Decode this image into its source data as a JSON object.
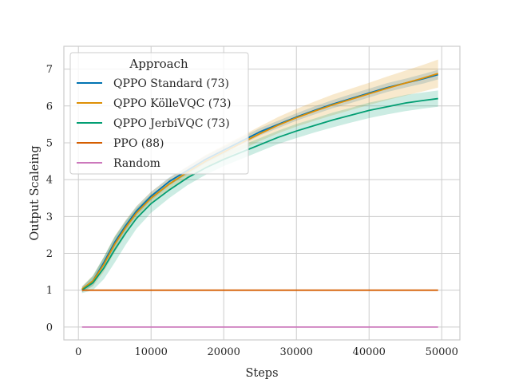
{
  "chart_data": {
    "type": "line",
    "title": "",
    "xlabel": "Steps",
    "ylabel": "Output Scaleing",
    "xlim": [
      -2000,
      52500
    ],
    "ylim": [
      -0.35,
      7.62
    ],
    "xticks": [
      0,
      10000,
      20000,
      30000,
      40000,
      50000
    ],
    "xtick_labels": [
      "0",
      "10000",
      "20000",
      "30000",
      "40000",
      "50000"
    ],
    "yticks": [
      0,
      1,
      2,
      3,
      4,
      5,
      6,
      7
    ],
    "ytick_labels": [
      "0",
      "1",
      "2",
      "3",
      "4",
      "5",
      "6",
      "7"
    ],
    "grid": true,
    "legend": {
      "title": "Approach",
      "placement": "top-left"
    },
    "x": [
      500,
      2000,
      3500,
      5000,
      6500,
      8000,
      10000,
      12500,
      15000,
      17500,
      20000,
      22500,
      25000,
      27500,
      30000,
      32500,
      35000,
      37500,
      40000,
      42500,
      45000,
      47500,
      49500
    ],
    "series": [
      {
        "name": "QPPO Standard (73)",
        "color": "#0173b2",
        "values": [
          1.02,
          1.25,
          1.75,
          2.3,
          2.75,
          3.15,
          3.55,
          3.95,
          4.25,
          4.55,
          4.8,
          5.05,
          5.3,
          5.5,
          5.7,
          5.88,
          6.05,
          6.2,
          6.35,
          6.5,
          6.62,
          6.74,
          6.85
        ],
        "band": [
          0.08,
          0.12,
          0.15,
          0.15,
          0.14,
          0.13,
          0.12,
          0.11,
          0.1,
          0.1,
          0.1,
          0.1,
          0.1,
          0.1,
          0.1,
          0.11,
          0.11,
          0.12,
          0.12,
          0.12,
          0.12,
          0.13,
          0.13
        ]
      },
      {
        "name": "QPPO KölleVQC (73)",
        "color": "#de8f05",
        "values": [
          1.03,
          1.25,
          1.7,
          2.25,
          2.7,
          3.1,
          3.5,
          3.88,
          4.2,
          4.5,
          4.75,
          5.0,
          5.25,
          5.48,
          5.68,
          5.86,
          6.03,
          6.18,
          6.33,
          6.48,
          6.62,
          6.76,
          6.88
        ],
        "band": [
          0.08,
          0.15,
          0.2,
          0.22,
          0.2,
          0.18,
          0.17,
          0.16,
          0.16,
          0.17,
          0.18,
          0.19,
          0.2,
          0.22,
          0.24,
          0.26,
          0.28,
          0.29,
          0.3,
          0.32,
          0.34,
          0.36,
          0.38
        ]
      },
      {
        "name": "QPPO JerbiVQC (73)",
        "color": "#029e73",
        "values": [
          1.0,
          1.2,
          1.6,
          2.1,
          2.55,
          2.95,
          3.35,
          3.72,
          4.05,
          4.32,
          4.55,
          4.75,
          4.95,
          5.15,
          5.32,
          5.47,
          5.62,
          5.75,
          5.88,
          5.98,
          6.08,
          6.15,
          6.2
        ],
        "band": [
          0.08,
          0.2,
          0.3,
          0.35,
          0.32,
          0.28,
          0.25,
          0.22,
          0.2,
          0.19,
          0.18,
          0.18,
          0.18,
          0.18,
          0.19,
          0.19,
          0.2,
          0.2,
          0.21,
          0.21,
          0.22,
          0.22,
          0.22
        ]
      },
      {
        "name": "PPO (88)",
        "color": "#d55e00",
        "values": [
          1,
          1,
          1,
          1,
          1,
          1,
          1,
          1,
          1,
          1,
          1,
          1,
          1,
          1,
          1,
          1,
          1,
          1,
          1,
          1,
          1,
          1,
          1
        ],
        "band": [
          0,
          0,
          0,
          0,
          0,
          0,
          0,
          0,
          0,
          0,
          0,
          0,
          0,
          0,
          0,
          0,
          0,
          0,
          0,
          0,
          0,
          0,
          0
        ]
      },
      {
        "name": "Random",
        "color": "#cc78bc",
        "values": [
          0,
          0,
          0,
          0,
          0,
          0,
          0,
          0,
          0,
          0,
          0,
          0,
          0,
          0,
          0,
          0,
          0,
          0,
          0,
          0,
          0,
          0,
          0
        ],
        "band": [
          0,
          0,
          0,
          0,
          0,
          0,
          0,
          0,
          0,
          0,
          0,
          0,
          0,
          0,
          0,
          0,
          0,
          0,
          0,
          0,
          0,
          0,
          0
        ]
      }
    ]
  }
}
